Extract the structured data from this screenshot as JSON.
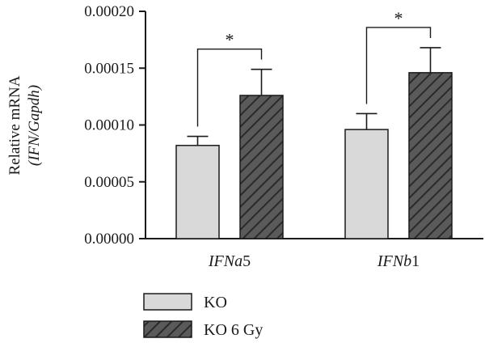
{
  "chart_data": {
    "type": "bar",
    "title": "",
    "xlabel": "",
    "ylabel": {
      "line1": "Relative mRNA",
      "line2": "(IFN/Gapdh)"
    },
    "ylim": [
      0,
      0.0002
    ],
    "y_ticks": [
      0.0,
      5e-05,
      0.0001,
      0.00015,
      0.0002
    ],
    "y_tick_labels": [
      "0.00000",
      "0.00005",
      "0.00010",
      "0.00015",
      "0.00020"
    ],
    "categories": [
      {
        "label_italic": "IFNa",
        "label_suffix": "5"
      },
      {
        "label_italic": "IFNb",
        "label_suffix": "1"
      }
    ],
    "series": [
      {
        "name": "KO",
        "fill": "#d9d9d9",
        "pattern": "solid",
        "values": [
          8.2e-05,
          9.6e-05
        ],
        "errors": [
          8e-06,
          1.4e-05
        ]
      },
      {
        "name": "KO 6 Gy",
        "fill": "#5a5a5a",
        "pattern": "hatched",
        "values": [
          0.000126,
          0.000146
        ],
        "errors": [
          2.3e-05,
          2.2e-05
        ]
      }
    ],
    "significance": [
      {
        "category": 0,
        "label": "*"
      },
      {
        "category": 1,
        "label": "*"
      }
    ],
    "grid": false,
    "legend_position": "bottom-left"
  }
}
